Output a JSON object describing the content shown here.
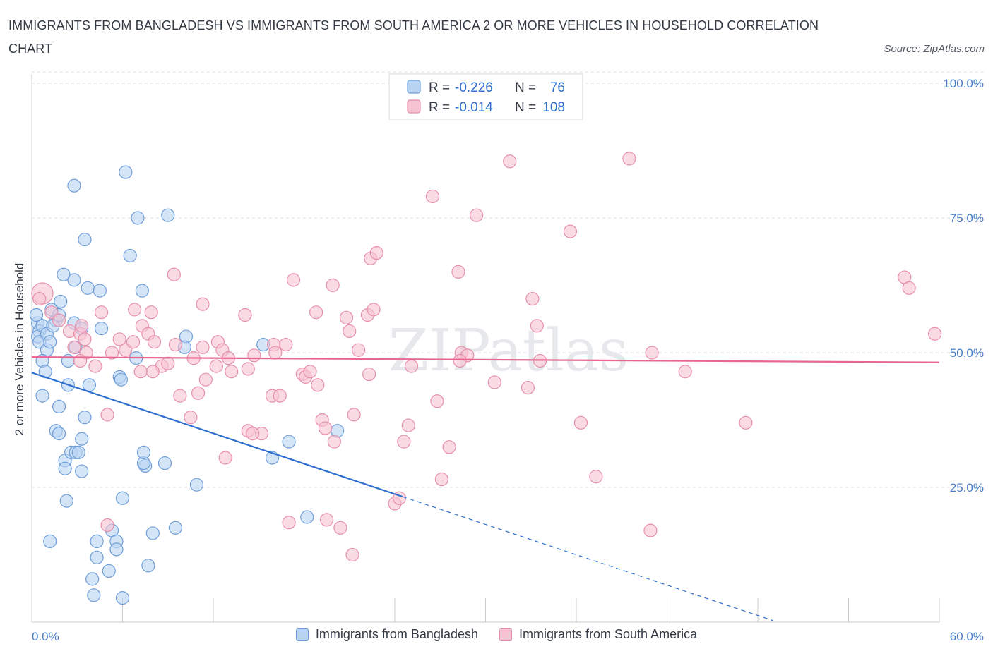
{
  "title": "IMMIGRANTS FROM BANGLADESH VS IMMIGRANTS FROM SOUTH AMERICA 2 OR MORE VEHICLES IN HOUSEHOLD CORRELATION CHART",
  "source": "Source: ZipAtlas.com",
  "watermark": "ZIPatlas",
  "colors": {
    "blue_fill": "#b9d3f3",
    "blue_stroke": "#6f9ed8",
    "blue_line": "#2f6fd0",
    "pink_fill": "#f6c3d2",
    "pink_stroke": "#e68fab",
    "pink_line": "#e86791",
    "axis_text": "#4a7cc4",
    "grid": "#dcdfe4"
  },
  "chart_data": {
    "type": "scatter",
    "title": "IMMIGRANTS FROM BANGLADESH VS IMMIGRANTS FROM SOUTH AMERICA 2 OR MORE VEHICLES IN HOUSEHOLD CORRELATION CHART",
    "xlabel": "",
    "ylabel": "2 or more Vehicles in Household",
    "xlim": [
      0,
      60
    ],
    "ylim": [
      0,
      100
    ],
    "x_tick_labels": [
      "0.0%",
      "60.0%"
    ],
    "y_tick_values": [
      25,
      50,
      75,
      100
    ],
    "y_tick_labels": [
      "25.0%",
      "50.0%",
      "75.0%",
      "100.0%"
    ],
    "grid": true,
    "legend_position": "top-center",
    "legend": [
      {
        "name": "Immigrants from Bangladesh",
        "r_label": "R = ",
        "r_value": "-0.226",
        "n_label": "N = ",
        "n_value": "76"
      },
      {
        "name": "Immigrants from South America",
        "r_label": "R = ",
        "r_value": "-0.014",
        "n_label": "N = ",
        "n_value": "108"
      }
    ],
    "series": [
      {
        "name": "Immigrants from Bangladesh",
        "color": "blue",
        "trend": {
          "x0": 0,
          "y0": 46.3,
          "x1": 24.5,
          "y1": 23.3,
          "dash_to_x": 49
        },
        "points": [
          [
            0.4,
            55.5
          ],
          [
            0.5,
            54.0
          ],
          [
            0.4,
            53.0
          ],
          [
            0.5,
            52.0
          ],
          [
            0.7,
            55.0
          ],
          [
            0.3,
            57.0
          ],
          [
            1.0,
            53.5
          ],
          [
            1.3,
            58.0
          ],
          [
            1.0,
            50.5
          ],
          [
            1.2,
            52.0
          ],
          [
            0.7,
            48.5
          ],
          [
            0.9,
            46.5
          ],
          [
            1.6,
            56.0
          ],
          [
            1.4,
            55.0
          ],
          [
            1.9,
            59.5
          ],
          [
            2.1,
            64.5
          ],
          [
            1.8,
            57.0
          ],
          [
            2.4,
            48.5
          ],
          [
            2.8,
            63.5
          ],
          [
            2.8,
            55.5
          ],
          [
            2.9,
            51.0
          ],
          [
            3.3,
            54.5
          ],
          [
            2.4,
            44.0
          ],
          [
            3.7,
            62.0
          ],
          [
            3.5,
            38.0
          ],
          [
            3.8,
            44.0
          ],
          [
            0.7,
            42.0
          ],
          [
            1.8,
            40.0
          ],
          [
            1.6,
            35.5
          ],
          [
            1.8,
            35.0
          ],
          [
            2.2,
            30.0
          ],
          [
            2.2,
            28.5
          ],
          [
            3.3,
            28.0
          ],
          [
            2.6,
            31.5
          ],
          [
            2.9,
            31.5
          ],
          [
            3.1,
            31.5
          ],
          [
            3.3,
            34.0
          ],
          [
            2.3,
            22.5
          ],
          [
            1.2,
            15.0
          ],
          [
            2.8,
            81.0
          ],
          [
            3.5,
            71.0
          ],
          [
            6.2,
            83.5
          ],
          [
            7.0,
            75.0
          ],
          [
            6.5,
            68.0
          ],
          [
            9.0,
            75.5
          ],
          [
            4.5,
            61.5
          ],
          [
            4.6,
            54.5
          ],
          [
            7.3,
            61.5
          ],
          [
            10.2,
            53.0
          ],
          [
            10.1,
            51.0
          ],
          [
            6.9,
            49.0
          ],
          [
            5.8,
            45.5
          ],
          [
            5.9,
            45.0
          ],
          [
            4.3,
            15.0
          ],
          [
            5.3,
            17.0
          ],
          [
            5.6,
            15.0
          ],
          [
            5.6,
            13.5
          ],
          [
            4.3,
            12.0
          ],
          [
            5.1,
            9.5
          ],
          [
            4.0,
            8.0
          ],
          [
            4.1,
            5.0
          ],
          [
            6.0,
            4.5
          ],
          [
            6.0,
            23.0
          ],
          [
            7.5,
            29.0
          ],
          [
            7.4,
            29.5
          ],
          [
            7.4,
            31.5
          ],
          [
            8.0,
            16.5
          ],
          [
            7.7,
            10.5
          ],
          [
            8.8,
            29.5
          ],
          [
            9.5,
            17.5
          ],
          [
            10.9,
            25.5
          ],
          [
            15.3,
            51.5
          ],
          [
            15.9,
            30.5
          ],
          [
            17.0,
            33.5
          ],
          [
            20.2,
            35.5
          ],
          [
            18.2,
            19.5
          ]
        ]
      },
      {
        "name": "Immigrants from South America",
        "color": "pink",
        "trend": {
          "x0": 0,
          "y0": 49.2,
          "x1": 60,
          "y1": 48.2
        },
        "points": [
          [
            0.7,
            61.0
          ],
          [
            0.5,
            60.0
          ],
          [
            1.3,
            57.5
          ],
          [
            1.8,
            56.0
          ],
          [
            2.5,
            54.0
          ],
          [
            3.2,
            53.5
          ],
          [
            3.3,
            55.0
          ],
          [
            3.5,
            52.5
          ],
          [
            2.8,
            51.0
          ],
          [
            3.6,
            50.0
          ],
          [
            3.2,
            48.5
          ],
          [
            4.2,
            47.5
          ],
          [
            4.6,
            57.5
          ],
          [
            5.3,
            50.0
          ],
          [
            5.8,
            52.5
          ],
          [
            6.2,
            50.5
          ],
          [
            6.7,
            52.0
          ],
          [
            6.8,
            58.0
          ],
          [
            7.3,
            55.0
          ],
          [
            7.9,
            57.5
          ],
          [
            7.7,
            53.5
          ],
          [
            8.1,
            52.0
          ],
          [
            8.6,
            47.5
          ],
          [
            8.0,
            46.5
          ],
          [
            7.2,
            46.5
          ],
          [
            9.0,
            48.0
          ],
          [
            9.5,
            51.5
          ],
          [
            9.4,
            64.5
          ],
          [
            9.8,
            42.0
          ],
          [
            11.3,
            59.0
          ],
          [
            11.3,
            51.0
          ],
          [
            10.7,
            49.0
          ],
          [
            11.0,
            42.5
          ],
          [
            10.5,
            38.0
          ],
          [
            12.3,
            52.0
          ],
          [
            12.6,
            50.5
          ],
          [
            12.2,
            47.5
          ],
          [
            13.2,
            46.5
          ],
          [
            13.0,
            49.0
          ],
          [
            14.1,
            57.0
          ],
          [
            14.3,
            47.0
          ],
          [
            14.7,
            49.5
          ],
          [
            14.3,
            35.5
          ],
          [
            15.2,
            35.0
          ],
          [
            16.0,
            51.5
          ],
          [
            16.1,
            50.0
          ],
          [
            16.8,
            51.5
          ],
          [
            15.9,
            42.0
          ],
          [
            16.4,
            42.0
          ],
          [
            12.8,
            30.5
          ],
          [
            5.0,
            38.5
          ],
          [
            5.0,
            18.0
          ],
          [
            17.3,
            63.5
          ],
          [
            17.9,
            46.0
          ],
          [
            18.1,
            45.5
          ],
          [
            18.8,
            57.5
          ],
          [
            18.9,
            44.0
          ],
          [
            19.2,
            37.5
          ],
          [
            19.4,
            36.0
          ],
          [
            19.9,
            62.5
          ],
          [
            20.0,
            33.5
          ],
          [
            20.8,
            56.5
          ],
          [
            21.0,
            54.0
          ],
          [
            21.3,
            38.5
          ],
          [
            21.6,
            50.5
          ],
          [
            22.2,
            57.0
          ],
          [
            22.4,
            67.5
          ],
          [
            22.6,
            58.0
          ],
          [
            22.8,
            68.5
          ],
          [
            22.3,
            46.0
          ],
          [
            24.0,
            22.0
          ],
          [
            24.3,
            23.0
          ],
          [
            24.6,
            33.5
          ],
          [
            24.9,
            36.5
          ],
          [
            25.1,
            47.5
          ],
          [
            26.5,
            79.0
          ],
          [
            26.8,
            41.0
          ],
          [
            27.1,
            26.5
          ],
          [
            27.6,
            32.5
          ],
          [
            28.2,
            65.0
          ],
          [
            28.4,
            50.0
          ],
          [
            28.8,
            49.5
          ],
          [
            28.3,
            48.5
          ],
          [
            29.4,
            75.5
          ],
          [
            30.6,
            44.5
          ],
          [
            31.6,
            85.5
          ],
          [
            32.8,
            43.5
          ],
          [
            33.1,
            60.0
          ],
          [
            33.4,
            55.0
          ],
          [
            33.6,
            48.5
          ],
          [
            35.6,
            72.5
          ],
          [
            36.3,
            37.0
          ],
          [
            37.3,
            27.0
          ],
          [
            39.5,
            86.0
          ],
          [
            40.9,
            17.0
          ],
          [
            41.0,
            50.0
          ],
          [
            43.2,
            46.5
          ],
          [
            47.2,
            37.0
          ],
          [
            57.7,
            64.0
          ],
          [
            58.0,
            62.0
          ],
          [
            59.7,
            53.5
          ],
          [
            17.0,
            18.5
          ],
          [
            20.4,
            17.5
          ],
          [
            21.2,
            12.5
          ],
          [
            19.5,
            19.0
          ],
          [
            18.4,
            46.5
          ],
          [
            14.6,
            35.0
          ],
          [
            11.5,
            45.0
          ]
        ]
      }
    ]
  }
}
